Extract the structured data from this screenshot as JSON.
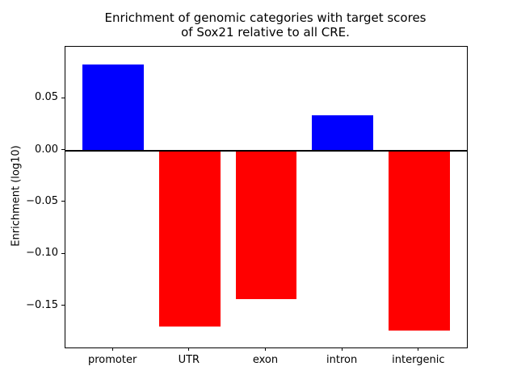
{
  "chart_data": {
    "type": "bar",
    "title_lines": [
      "Enrichment of genomic categories with target scores",
      "of Sox21 relative to all CRE."
    ],
    "xlabel": "",
    "ylabel": "Enrichment (log10)",
    "categories": [
      "promoter",
      "UTR",
      "exon",
      "intron",
      "intergenic"
    ],
    "values": [
      0.083,
      -0.17,
      -0.143,
      0.034,
      -0.174
    ],
    "bar_colors": [
      "#0000ff",
      "#ff0000",
      "#ff0000",
      "#0000ff",
      "#ff0000"
    ],
    "positive_color": "#0000ff",
    "negative_color": "#ff0000",
    "bar_width": 0.8,
    "ylim": [
      -0.19,
      0.1
    ],
    "xlim": [
      -0.625,
      4.625
    ],
    "yticks": [
      {
        "value": 0.05,
        "label": "0.05"
      },
      {
        "value": 0.0,
        "label": "0.00"
      },
      {
        "value": -0.05,
        "label": "−0.05"
      },
      {
        "value": -0.1,
        "label": "−0.10"
      },
      {
        "value": -0.15,
        "label": "−0.15"
      }
    ],
    "zero_line": true,
    "grid": false,
    "legend": null
  }
}
